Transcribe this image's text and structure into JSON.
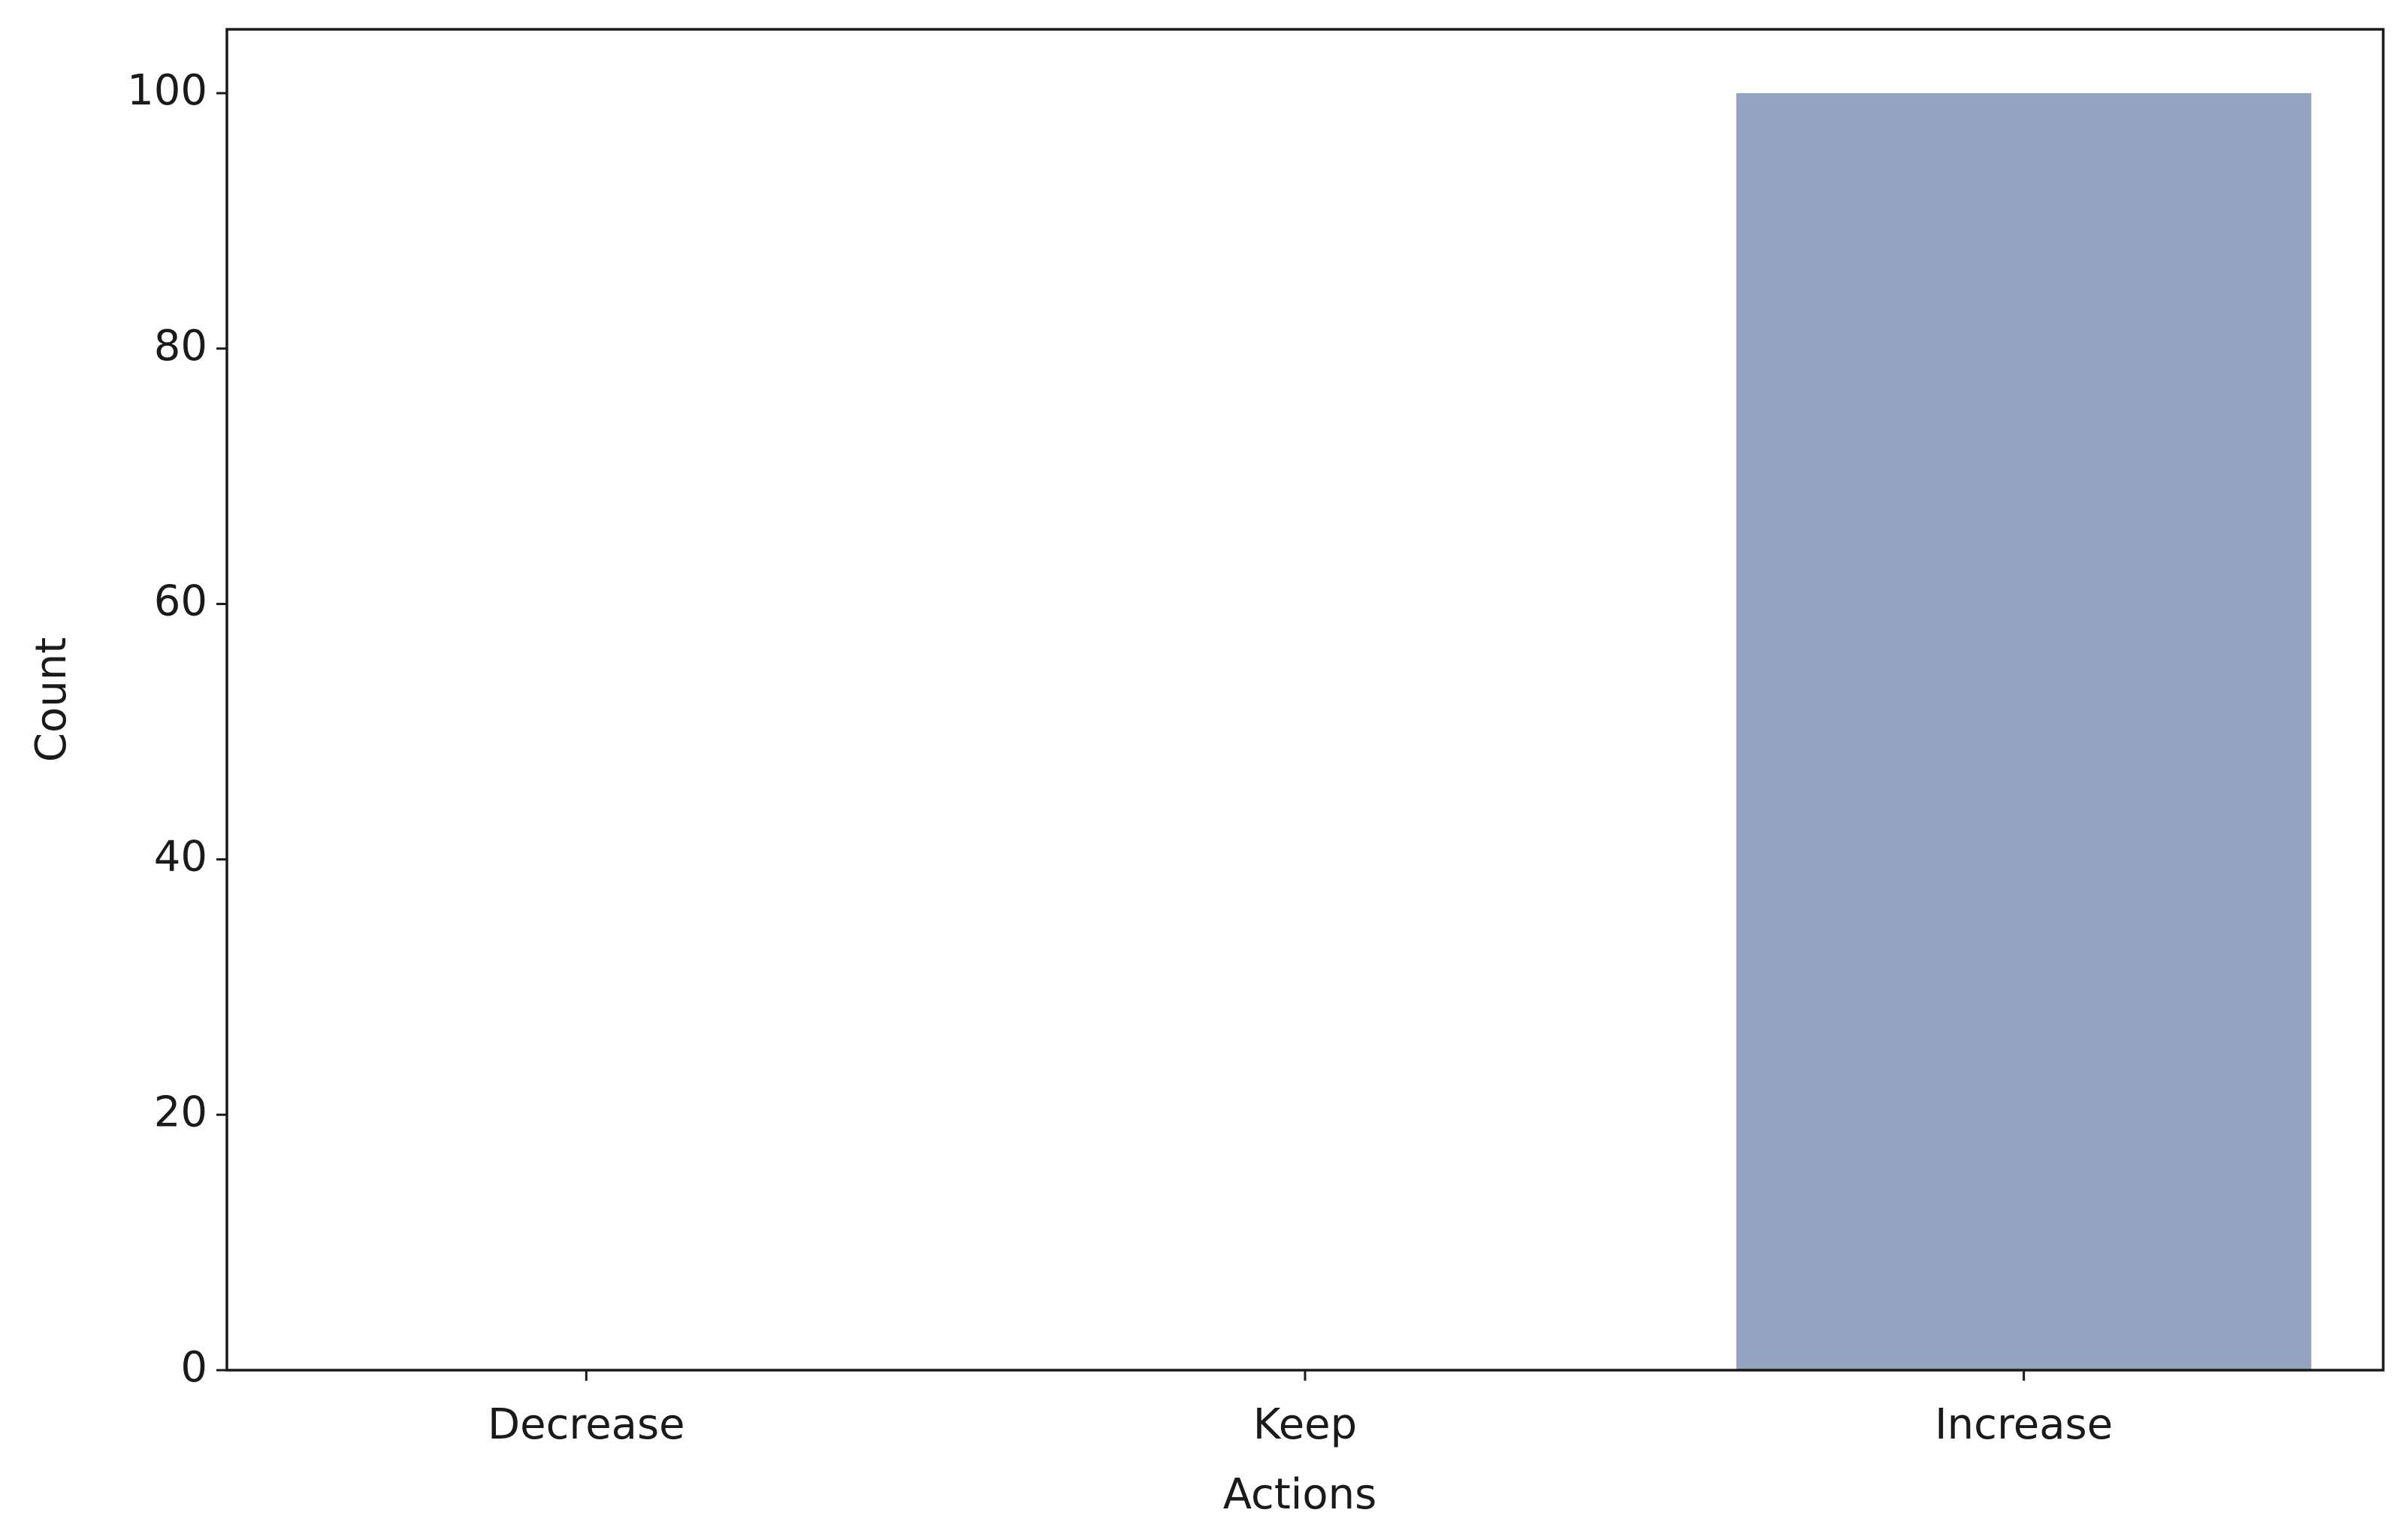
{
  "chart_data": {
    "type": "bar",
    "x_label": "Actions",
    "y_label": "Count",
    "categories": [
      "Decrease",
      "Keep",
      "Increase"
    ],
    "values": [
      0,
      0,
      100
    ],
    "color": "#94a3c2",
    "ylim": [
      0,
      105
    ],
    "yticks": [
      0,
      20,
      40,
      60,
      80,
      100
    ],
    "grid": false
  }
}
